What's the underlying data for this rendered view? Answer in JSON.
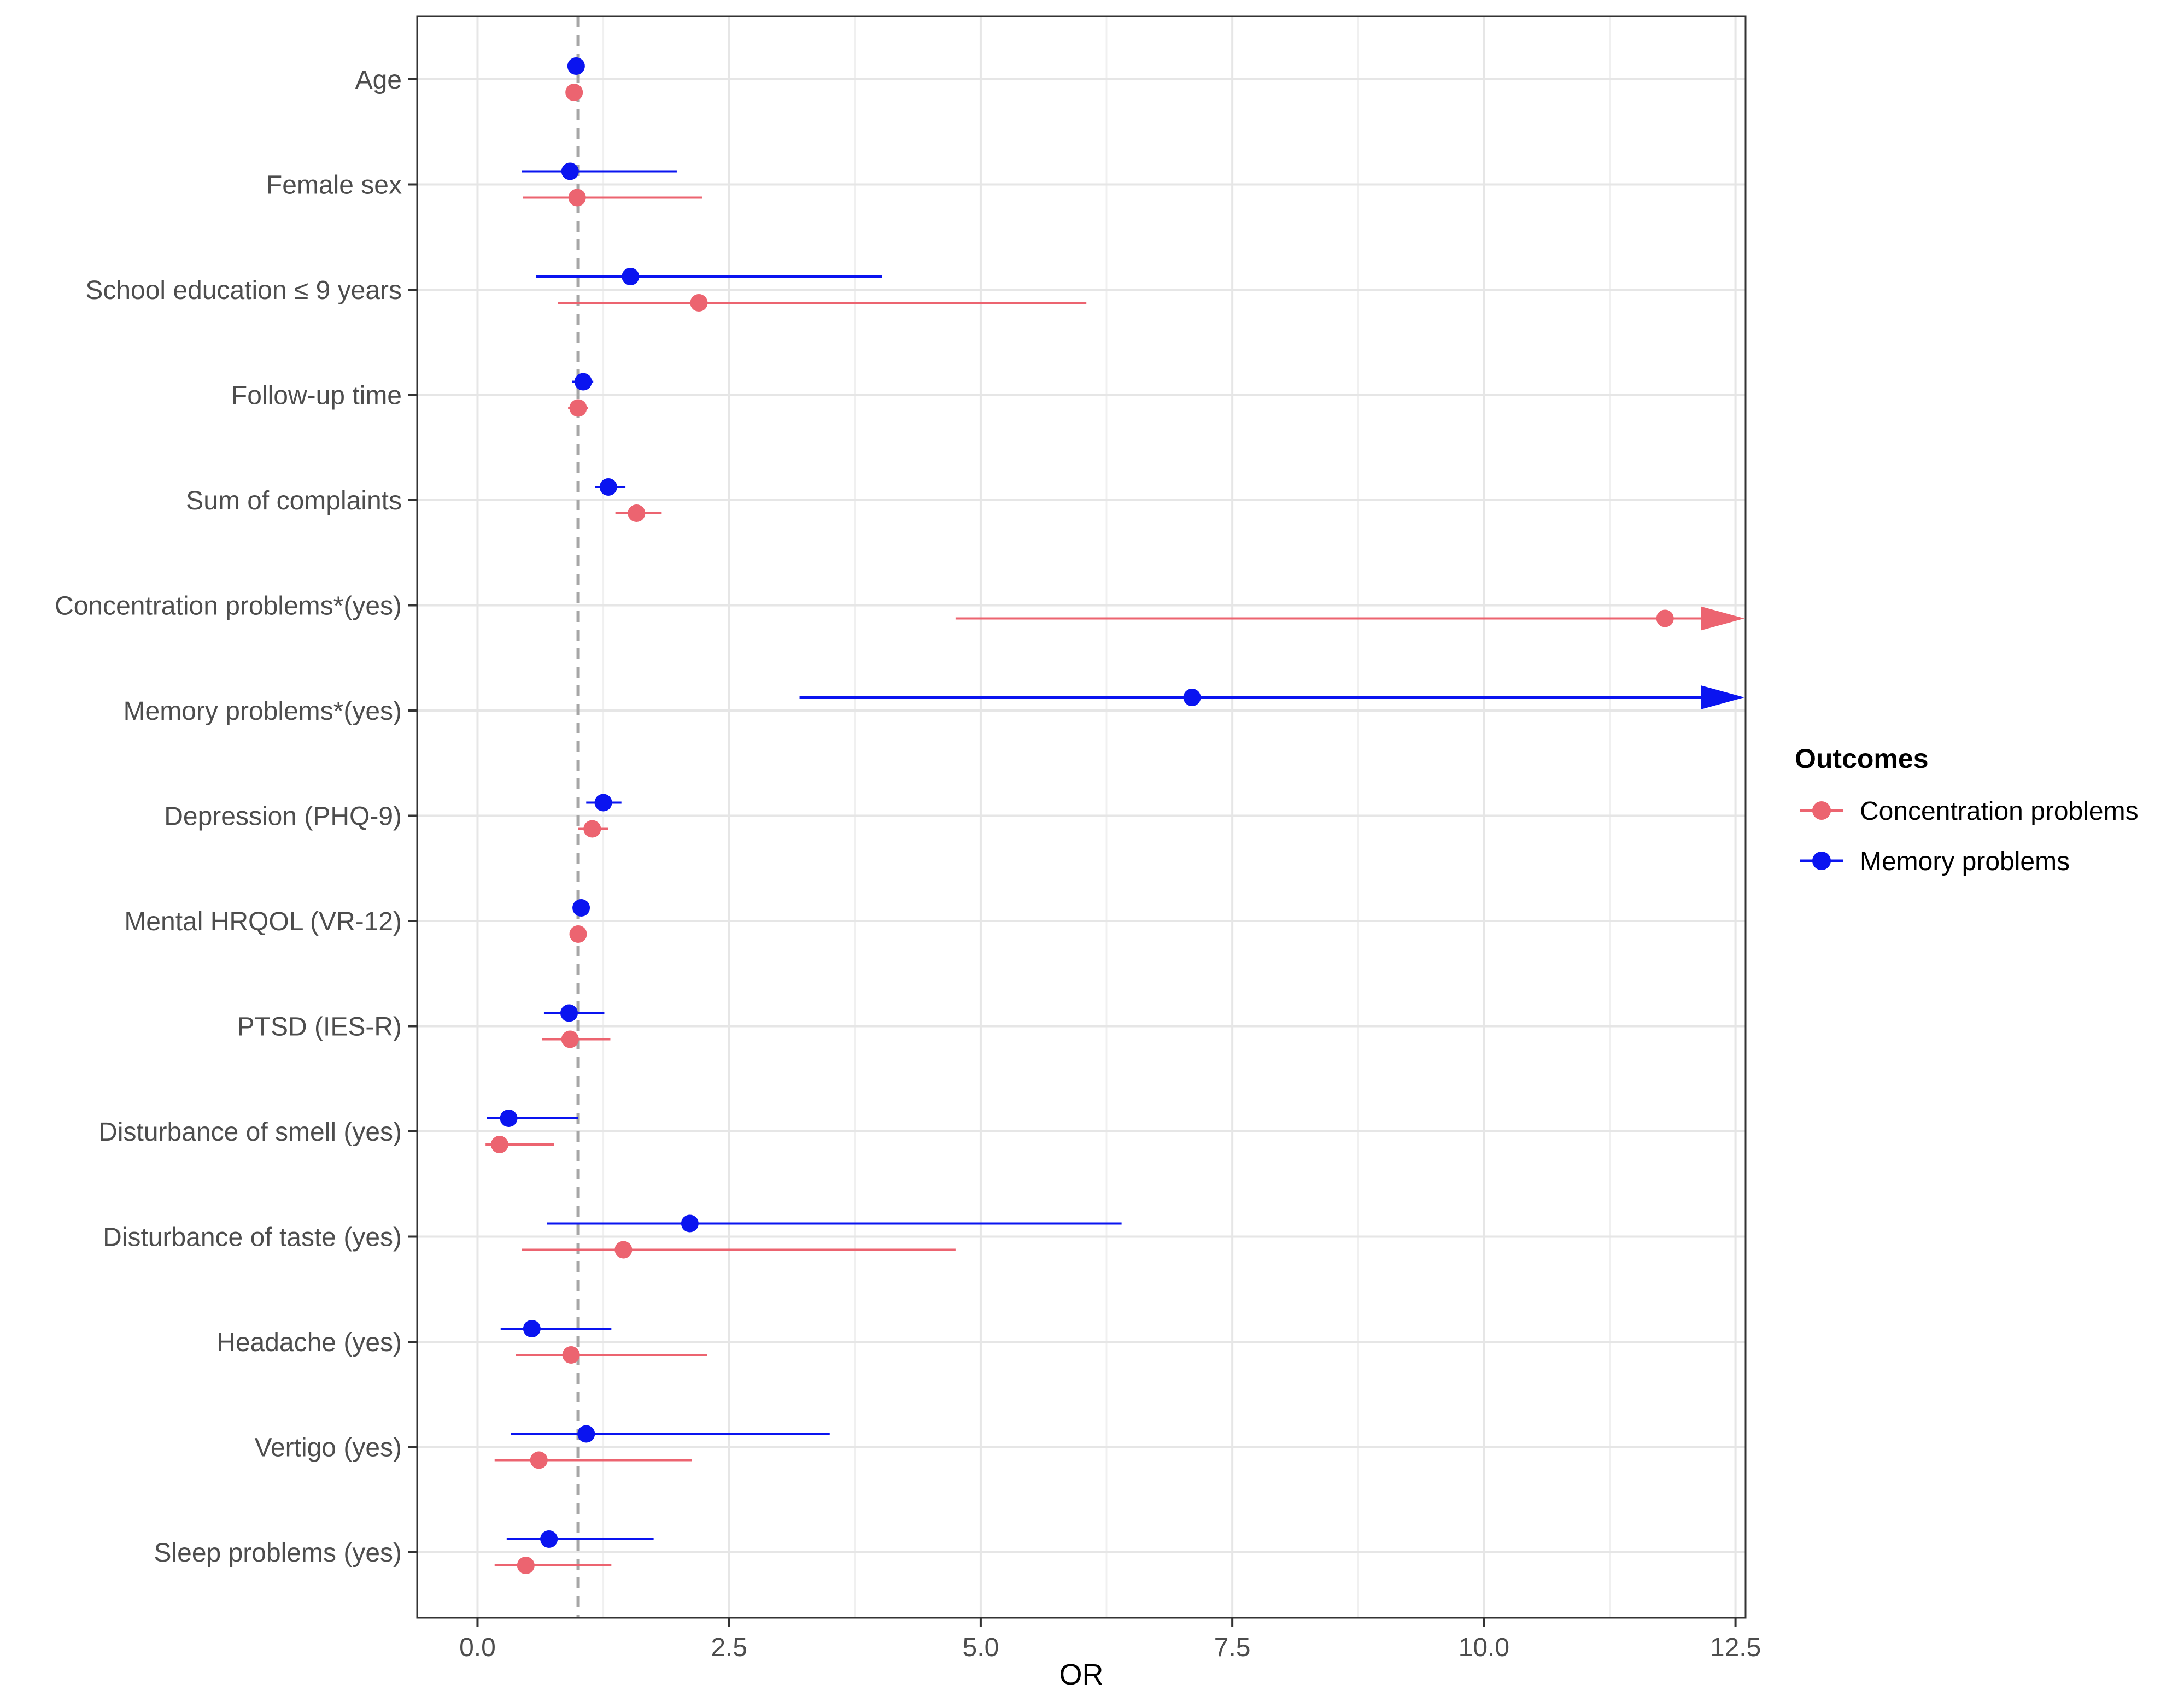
{
  "chart_data": {
    "type": "forest",
    "xlabel": "OR",
    "xlim": [
      -0.6,
      12.6
    ],
    "xticks": [
      0,
      2.5,
      5,
      7.5,
      10,
      12.5
    ],
    "xtick_labels": [
      "0.0",
      "2.5",
      "5.0",
      "7.5",
      "10.0",
      "12.5"
    ],
    "reference_line": 1,
    "categories": [
      "Age",
      "Female sex",
      "School education ≤ 9 years",
      "Follow-up time",
      "Sum of complaints",
      "Concentration problems*(yes)",
      "Memory problems*(yes)",
      "Depression (PHQ-9)",
      "Mental HRQOL (VR-12)",
      "PTSD (IES-R)",
      "Disturbance of smell (yes)",
      "Disturbance of taste (yes)",
      "Headache (yes)",
      "Vertigo (yes)",
      "Sleep problems (yes)"
    ],
    "legend": {
      "title": "Outcomes",
      "position": "right",
      "entries": [
        "Concentration problems",
        "Memory problems"
      ]
    },
    "series": [
      {
        "name": "Memory problems",
        "color": "#0a14f0",
        "offset": "above",
        "points": [
          {
            "category": "Age",
            "or": 0.98,
            "lo": 0.94,
            "hi": 1.03
          },
          {
            "category": "Female sex",
            "or": 0.92,
            "lo": 0.44,
            "hi": 1.98
          },
          {
            "category": "School education ≤ 9 years",
            "or": 1.52,
            "lo": 0.58,
            "hi": 4.02
          },
          {
            "category": "Follow-up time",
            "or": 1.05,
            "lo": 0.94,
            "hi": 1.15
          },
          {
            "category": "Sum of complaints",
            "or": 1.3,
            "lo": 1.17,
            "hi": 1.47
          },
          {
            "category": "Concentration problems*(yes)",
            "or": null,
            "lo": null,
            "hi": null
          },
          {
            "category": "Memory problems*(yes)",
            "or": 7.1,
            "lo": 3.2,
            "hi": 12.6,
            "arrow": true
          },
          {
            "category": "Depression (PHQ-9)",
            "or": 1.25,
            "lo": 1.08,
            "hi": 1.43
          },
          {
            "category": "Mental HRQOL (VR-12)",
            "or": 1.03,
            "lo": 0.99,
            "hi": 1.08
          },
          {
            "category": "PTSD (IES-R)",
            "or": 0.91,
            "lo": 0.66,
            "hi": 1.26
          },
          {
            "category": "Disturbance of smell (yes)",
            "or": 0.31,
            "lo": 0.09,
            "hi": 1.0
          },
          {
            "category": "Disturbance of taste (yes)",
            "or": 2.11,
            "lo": 0.69,
            "hi": 6.4
          },
          {
            "category": "Headache (yes)",
            "or": 0.54,
            "lo": 0.23,
            "hi": 1.33
          },
          {
            "category": "Vertigo (yes)",
            "or": 1.08,
            "lo": 0.33,
            "hi": 3.5
          },
          {
            "category": "Sleep problems (yes)",
            "or": 0.71,
            "lo": 0.29,
            "hi": 1.75
          }
        ]
      },
      {
        "name": "Concentration problems",
        "color": "#ec6470",
        "offset": "below",
        "points": [
          {
            "category": "Age",
            "or": 0.96,
            "lo": 0.92,
            "hi": 1.01
          },
          {
            "category": "Female sex",
            "or": 0.99,
            "lo": 0.45,
            "hi": 2.23
          },
          {
            "category": "School education ≤ 9 years",
            "or": 2.2,
            "lo": 0.8,
            "hi": 6.05
          },
          {
            "category": "Follow-up time",
            "or": 1.0,
            "lo": 0.9,
            "hi": 1.1
          },
          {
            "category": "Sum of complaints",
            "or": 1.58,
            "lo": 1.37,
            "hi": 1.83
          },
          {
            "category": "Concentration problems*(yes)",
            "or": 11.8,
            "lo": 4.75,
            "hi": 12.6,
            "arrow": true
          },
          {
            "category": "Memory problems*(yes)",
            "or": null,
            "lo": null,
            "hi": null
          },
          {
            "category": "Depression (PHQ-9)",
            "or": 1.14,
            "lo": 1.0,
            "hi": 1.3
          },
          {
            "category": "Mental HRQOL (VR-12)",
            "or": 1.0,
            "lo": 0.95,
            "hi": 1.05
          },
          {
            "category": "PTSD (IES-R)",
            "or": 0.92,
            "lo": 0.64,
            "hi": 1.32
          },
          {
            "category": "Disturbance of smell (yes)",
            "or": 0.22,
            "lo": 0.08,
            "hi": 0.76
          },
          {
            "category": "Disturbance of taste (yes)",
            "or": 1.45,
            "lo": 0.44,
            "hi": 4.75
          },
          {
            "category": "Headache (yes)",
            "or": 0.93,
            "lo": 0.38,
            "hi": 2.28
          },
          {
            "category": "Vertigo (yes)",
            "or": 0.61,
            "lo": 0.17,
            "hi": 2.13
          },
          {
            "category": "Sleep problems (yes)",
            "or": 0.48,
            "lo": 0.17,
            "hi": 1.33
          }
        ]
      }
    ]
  }
}
